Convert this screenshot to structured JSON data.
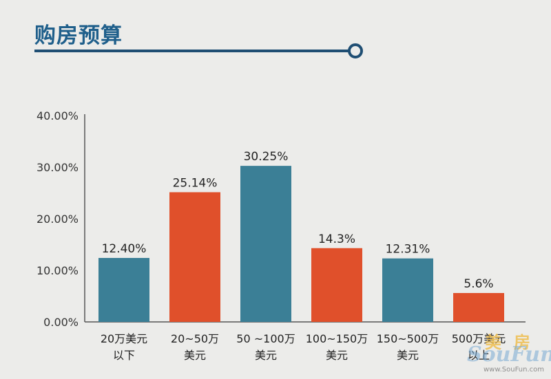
{
  "header": {
    "title": "购房预算"
  },
  "watermark": {
    "cn": "美房",
    "en": "SouFun",
    "url": "www.SouFun.com"
  },
  "chart_data": {
    "type": "bar",
    "title": "购房预算",
    "categories": [
      [
        "20万美元",
        "以下"
      ],
      [
        "20~50万",
        "美元"
      ],
      [
        "50 ~100万",
        "美元"
      ],
      [
        "100~150万",
        "美元"
      ],
      [
        "150~500万",
        "美元"
      ],
      [
        "500万美元",
        "以上"
      ]
    ],
    "values": [
      12.4,
      25.14,
      30.25,
      14.3,
      12.31,
      5.6
    ],
    "value_labels": [
      "12.40%",
      "25.14%",
      "30.25%",
      "14.3%",
      "12.31%",
      "5.6%"
    ],
    "ylim": [
      0,
      40
    ],
    "yticks": [
      0,
      10,
      20,
      30,
      40
    ],
    "ytick_labels": [
      "0.00%",
      "10.00%",
      "20.00%",
      "30.00%",
      "40.00%"
    ],
    "colors": [
      "#3b7f96",
      "#e0502b",
      "#3b7f96",
      "#e0502b",
      "#3b7f96",
      "#e0502b"
    ],
    "grid": false,
    "legend": "none"
  }
}
